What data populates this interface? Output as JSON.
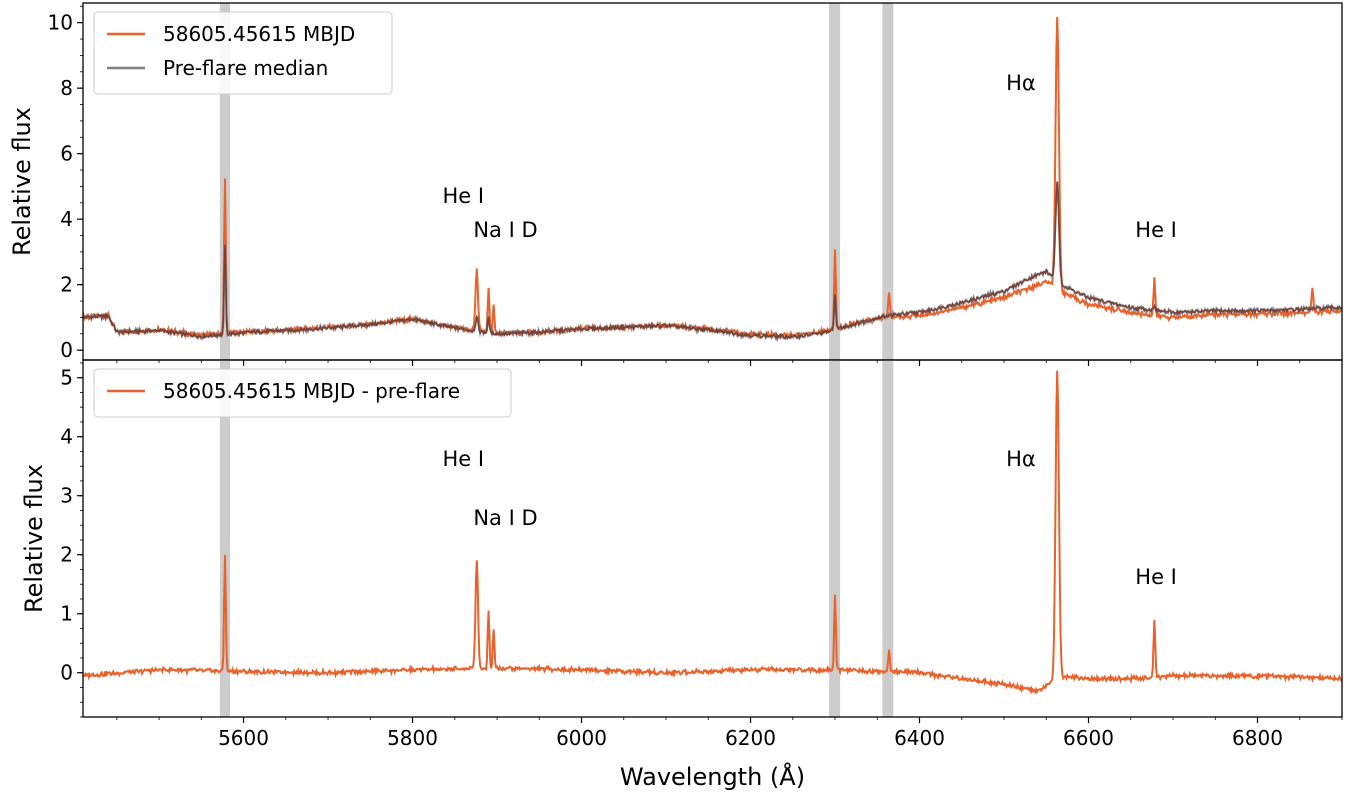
{
  "chart_data": [
    {
      "type": "line",
      "panel": "top",
      "xlabel": "Wavelength (Å)",
      "ylabel": "Relative flux",
      "xlim": [
        5410,
        6900
      ],
      "ylim": [
        -0.3,
        10.6
      ],
      "yticks": [
        0,
        2,
        4,
        6,
        8,
        10
      ],
      "ytick_labels": [
        "0",
        "2",
        "4",
        "6",
        "8",
        "10"
      ],
      "shaded_bands": [
        [
          5572,
          5584
        ],
        [
          6293,
          6306
        ],
        [
          6356,
          6369
        ]
      ],
      "legend": {
        "position": "top-left",
        "entries": [
          "58605.45615 MBJD",
          "Pre-flare median"
        ]
      },
      "annotations": [
        {
          "text": "He I",
          "x": 5860,
          "y": 4.5
        },
        {
          "text": "Na I D",
          "x": 5910,
          "y": 3.45
        },
        {
          "text": "Hα",
          "x": 6520,
          "y": 7.95
        },
        {
          "text": "He I",
          "x": 6680,
          "y": 3.45
        }
      ],
      "series": [
        {
          "name": "58605.45615 MBJD",
          "color": "#e8622c",
          "continuum": [
            [
              5410,
              1.0
            ],
            [
              5440,
              1.05
            ],
            [
              5450,
              0.55
            ],
            [
              5500,
              0.62
            ],
            [
              5550,
              0.45
            ],
            [
              5575,
              0.5
            ],
            [
              5610,
              0.58
            ],
            [
              5650,
              0.6
            ],
            [
              5700,
              0.7
            ],
            [
              5750,
              0.78
            ],
            [
              5800,
              0.95
            ],
            [
              5840,
              0.75
            ],
            [
              5870,
              0.62
            ],
            [
              5900,
              0.5
            ],
            [
              5950,
              0.55
            ],
            [
              6000,
              0.65
            ],
            [
              6050,
              0.7
            ],
            [
              6100,
              0.75
            ],
            [
              6150,
              0.65
            ],
            [
              6200,
              0.5
            ],
            [
              6250,
              0.45
            ],
            [
              6290,
              0.6
            ],
            [
              6330,
              0.85
            ],
            [
              6360,
              1.0
            ],
            [
              6400,
              1.05
            ],
            [
              6450,
              1.3
            ],
            [
              6500,
              1.6
            ],
            [
              6530,
              1.9
            ],
            [
              6550,
              2.1
            ],
            [
              6575,
              1.7
            ],
            [
              6600,
              1.4
            ],
            [
              6650,
              1.15
            ],
            [
              6700,
              1.0
            ],
            [
              6750,
              1.1
            ],
            [
              6800,
              1.1
            ],
            [
              6850,
              1.15
            ],
            [
              6900,
              1.2
            ]
          ],
          "lines": [
            [
              5578,
              5.25,
              1
            ],
            [
              5876,
              2.45,
              1.5
            ],
            [
              5890,
              1.85,
              1
            ],
            [
              5896,
              1.35,
              1
            ],
            [
              6300,
              3.05,
              1
            ],
            [
              6364,
              1.75,
              1
            ],
            [
              6563,
              10.2,
              2
            ],
            [
              6678,
              2.2,
              1
            ],
            [
              6865,
              1.9,
              1
            ]
          ]
        },
        {
          "name": "Pre-flare median",
          "color": "#7f7f8c",
          "continuum": [
            [
              5410,
              1.0
            ],
            [
              5440,
              1.05
            ],
            [
              5450,
              0.55
            ],
            [
              5500,
              0.6
            ],
            [
              5550,
              0.42
            ],
            [
              5575,
              0.48
            ],
            [
              5610,
              0.55
            ],
            [
              5650,
              0.6
            ],
            [
              5700,
              0.68
            ],
            [
              5750,
              0.78
            ],
            [
              5800,
              0.95
            ],
            [
              5840,
              0.72
            ],
            [
              5870,
              0.6
            ],
            [
              5900,
              0.5
            ],
            [
              5950,
              0.55
            ],
            [
              6000,
              0.65
            ],
            [
              6050,
              0.7
            ],
            [
              6100,
              0.75
            ],
            [
              6150,
              0.62
            ],
            [
              6200,
              0.45
            ],
            [
              6250,
              0.4
            ],
            [
              6290,
              0.55
            ],
            [
              6330,
              0.85
            ],
            [
              6360,
              1.05
            ],
            [
              6400,
              1.15
            ],
            [
              6450,
              1.45
            ],
            [
              6500,
              1.8
            ],
            [
              6530,
              2.2
            ],
            [
              6550,
              2.4
            ],
            [
              6575,
              1.9
            ],
            [
              6600,
              1.6
            ],
            [
              6650,
              1.3
            ],
            [
              6700,
              1.15
            ],
            [
              6750,
              1.2
            ],
            [
              6800,
              1.2
            ],
            [
              6850,
              1.25
            ],
            [
              6900,
              1.3
            ]
          ],
          "lines": [
            [
              5578,
              3.25,
              1
            ],
            [
              5876,
              1.0,
              1.5
            ],
            [
              5890,
              1.0,
              1
            ],
            [
              6300,
              1.75,
              1
            ],
            [
              6563,
              5.1,
              2
            ],
            [
              6678,
              1.4,
              1
            ]
          ]
        }
      ]
    },
    {
      "type": "line",
      "panel": "bottom",
      "xlabel": "Wavelength (Å)",
      "ylabel": "Relative flux",
      "xlim": [
        5410,
        6900
      ],
      "ylim": [
        -0.75,
        5.3
      ],
      "xticks": [
        5600,
        5800,
        6000,
        6200,
        6400,
        6600,
        6800
      ],
      "xtick_labels": [
        "5600",
        "5800",
        "6000",
        "6200",
        "6400",
        "6600",
        "6800"
      ],
      "yticks": [
        0,
        1,
        2,
        3,
        4,
        5
      ],
      "ytick_labels": [
        "0",
        "1",
        "2",
        "3",
        "4",
        "5"
      ],
      "shaded_bands": [
        [
          5572,
          5584
        ],
        [
          6293,
          6306
        ],
        [
          6356,
          6369
        ]
      ],
      "legend": {
        "position": "top-left",
        "entries": [
          "58605.45615 MBJD - pre-flare"
        ]
      },
      "annotations": [
        {
          "text": "He I",
          "x": 5860,
          "y": 3.5
        },
        {
          "text": "Na I D",
          "x": 5910,
          "y": 2.5
        },
        {
          "text": "Hα",
          "x": 6520,
          "y": 3.5
        },
        {
          "text": "He I",
          "x": 6680,
          "y": 1.5
        }
      ],
      "series": [
        {
          "name": "58605.45615 MBJD - pre-flare",
          "color": "#e8622c",
          "continuum": [
            [
              5410,
              -0.05
            ],
            [
              5500,
              0.05
            ],
            [
              5600,
              0.02
            ],
            [
              5700,
              0.0
            ],
            [
              5800,
              0.05
            ],
            [
              5900,
              0.08
            ],
            [
              6000,
              0.05
            ],
            [
              6100,
              0.0
            ],
            [
              6200,
              0.05
            ],
            [
              6300,
              0.05
            ],
            [
              6400,
              0.0
            ],
            [
              6450,
              -0.1
            ],
            [
              6500,
              -0.2
            ],
            [
              6540,
              -0.3
            ],
            [
              6575,
              -0.05
            ],
            [
              6600,
              -0.1
            ],
            [
              6650,
              -0.1
            ],
            [
              6700,
              -0.05
            ],
            [
              6800,
              -0.05
            ],
            [
              6900,
              -0.1
            ]
          ],
          "lines": [
            [
              5578,
              2.02,
              1
            ],
            [
              5876,
              1.93,
              1.5
            ],
            [
              5890,
              1.05,
              1
            ],
            [
              5896,
              0.72,
              1
            ],
            [
              6300,
              1.32,
              1
            ],
            [
              6364,
              0.4,
              1
            ],
            [
              6563,
              5.1,
              2
            ],
            [
              6678,
              0.89,
              1
            ]
          ]
        }
      ]
    }
  ]
}
